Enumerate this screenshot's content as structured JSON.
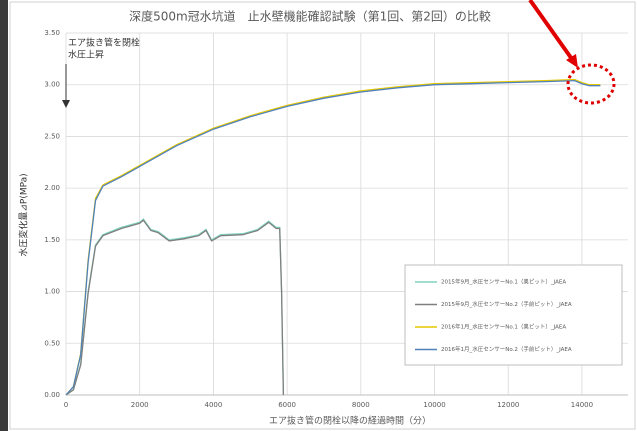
{
  "chart_data": {
    "type": "line",
    "title": "深度500m冠水坑道　止水壁機能確認試験（第1回、第2回）の比較",
    "x_label": "エア抜き管の閉栓以降の経過時間（分）",
    "y_label": "水圧変化量⊿P(MPa)",
    "annotation": [
      "エア抜き管を閉栓",
      "水圧上昇"
    ],
    "xlim": [
      0,
      15250
    ],
    "ylim": [
      0,
      3.5
    ],
    "xticks": [
      0,
      2000,
      4000,
      6000,
      8000,
      10000,
      12000,
      14000
    ],
    "yticks": [
      {
        "value": 0,
        "label": "0.00"
      },
      {
        "value": 0.5,
        "label": "0.50"
      },
      {
        "value": 1,
        "label": "1.00"
      },
      {
        "value": 1.5,
        "label": "1.50"
      },
      {
        "value": 2,
        "label": "2.00"
      },
      {
        "value": 2.5,
        "label": "2.50"
      },
      {
        "value": 3,
        "label": "3.00"
      },
      {
        "value": 3.5,
        "label": "3.50"
      }
    ],
    "grid": true,
    "legend_position": "lower right",
    "series": [
      {
        "name": "2015年9月_水圧センサーNo.1（奥ピット）_JAEA",
        "color": "#7fd3c0",
        "x": [
          0,
          200,
          400,
          600,
          800,
          1000,
          1500,
          2000,
          2100,
          2300,
          2500,
          2800,
          3200,
          3600,
          3800,
          3950,
          4200,
          4800,
          5200,
          5500,
          5700,
          5800,
          5850,
          5900
        ],
        "values": [
          0,
          0.05,
          0.3,
          1.0,
          1.45,
          1.55,
          1.62,
          1.67,
          1.7,
          1.6,
          1.58,
          1.5,
          1.52,
          1.55,
          1.6,
          1.5,
          1.55,
          1.56,
          1.6,
          1.68,
          1.62,
          1.62,
          1.0,
          0
        ]
      },
      {
        "name": "2015年9月_水圧センサーNo.2（手前ピット）_JAEA",
        "color": "#7f7f7f",
        "x": [
          0,
          200,
          400,
          600,
          800,
          1000,
          1500,
          2000,
          2100,
          2300,
          2500,
          2800,
          3200,
          3600,
          3800,
          3950,
          4200,
          4800,
          5200,
          5500,
          5700,
          5800,
          5850,
          5900
        ],
        "values": [
          0,
          0.05,
          0.29,
          0.98,
          1.44,
          1.54,
          1.61,
          1.66,
          1.69,
          1.59,
          1.57,
          1.49,
          1.51,
          1.54,
          1.59,
          1.49,
          1.54,
          1.55,
          1.59,
          1.67,
          1.61,
          1.61,
          0.99,
          0
        ]
      },
      {
        "name": "2016年1月_水圧センサーNo.1（奥ピット）_JAEA",
        "color": "#e6c800",
        "x": [
          0,
          200,
          400,
          600,
          800,
          1000,
          1500,
          2000,
          3000,
          4000,
          5000,
          6000,
          7000,
          8000,
          9000,
          10000,
          11000,
          12000,
          13000,
          13800,
          14000,
          14200,
          14500
        ],
        "values": [
          0,
          0.08,
          0.4,
          1.3,
          1.9,
          2.03,
          2.12,
          2.22,
          2.42,
          2.58,
          2.7,
          2.8,
          2.88,
          2.94,
          2.98,
          3.01,
          3.02,
          3.03,
          3.04,
          3.05,
          3.02,
          3.0,
          3.0
        ]
      },
      {
        "name": "2016年1月_水圧センサーNo.2（手前ピット）_JAEA",
        "color": "#4f81bd",
        "x": [
          0,
          200,
          400,
          600,
          800,
          1000,
          1500,
          2000,
          3000,
          4000,
          5000,
          6000,
          7000,
          8000,
          9000,
          10000,
          11000,
          12000,
          13000,
          13800,
          14000,
          14200,
          14500
        ],
        "values": [
          0,
          0.08,
          0.39,
          1.28,
          1.88,
          2.02,
          2.11,
          2.21,
          2.41,
          2.57,
          2.69,
          2.79,
          2.87,
          2.93,
          2.97,
          3.0,
          3.01,
          3.02,
          3.03,
          3.04,
          3.01,
          2.99,
          2.99
        ]
      }
    ]
  }
}
